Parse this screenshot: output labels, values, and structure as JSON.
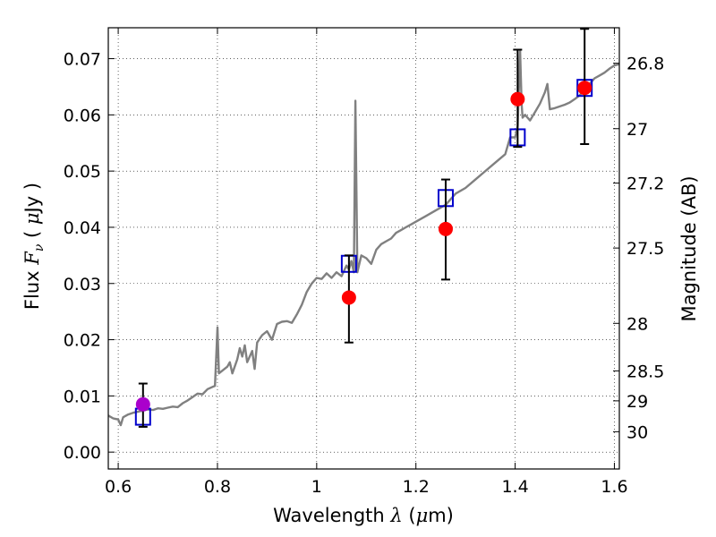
{
  "chart_data": {
    "type": "scatter",
    "title": "",
    "xlabel": "Wavelength  λ (μm)",
    "ylabel": "Flux  Fν  ( μJy )",
    "ylabel_parts": {
      "pre": "Flux ",
      "sym": "F",
      "sub": "ν",
      "post": "  ( ",
      "mu": "μ",
      "unit": "Jy )"
    },
    "xlabel_parts": {
      "pre": "Wavelength  ",
      "sym": "λ",
      "post": " (",
      "mu": "μ",
      "unit": "m)"
    },
    "right_ylabel": "Magnitude (AB)",
    "xlim": [
      0.58,
      1.61
    ],
    "ylim": [
      -0.003,
      0.0755
    ],
    "grid": true,
    "x_ticks": [
      {
        "v": 0.6,
        "label": "0.6"
      },
      {
        "v": 0.8,
        "label": "0.8"
      },
      {
        "v": 1.0,
        "label": "1"
      },
      {
        "v": 1.2,
        "label": "1.2"
      },
      {
        "v": 1.4,
        "label": "1.4"
      },
      {
        "v": 1.6,
        "label": "1.6"
      }
    ],
    "y_ticks": [
      {
        "v": 0.0,
        "label": "0.00"
      },
      {
        "v": 0.01,
        "label": "0.01"
      },
      {
        "v": 0.02,
        "label": "0.02"
      },
      {
        "v": 0.03,
        "label": "0.03"
      },
      {
        "v": 0.04,
        "label": "0.04"
      },
      {
        "v": 0.05,
        "label": "0.05"
      },
      {
        "v": 0.06,
        "label": "0.06"
      },
      {
        "v": 0.07,
        "label": "0.07"
      }
    ],
    "right_ticks": [
      {
        "mag": 26.8,
        "label": "26.8"
      },
      {
        "mag": 27.0,
        "label": "27"
      },
      {
        "mag": 27.2,
        "label": "27.2"
      },
      {
        "mag": 27.5,
        "label": "27.5"
      },
      {
        "mag": 28.0,
        "label": "28"
      },
      {
        "mag": 28.5,
        "label": "28.5"
      },
      {
        "mag": 29.0,
        "label": "29"
      },
      {
        "mag": 30.0,
        "label": "30"
      }
    ],
    "series": [
      {
        "kind": "line",
        "color": "#808080",
        "points": [
          [
            0.58,
            0.0065
          ],
          [
            0.59,
            0.006
          ],
          [
            0.6,
            0.0058
          ],
          [
            0.605,
            0.0048
          ],
          [
            0.61,
            0.0062
          ],
          [
            0.62,
            0.0067
          ],
          [
            0.63,
            0.007
          ],
          [
            0.64,
            0.0072
          ],
          [
            0.65,
            0.0074
          ],
          [
            0.66,
            0.0076
          ],
          [
            0.67,
            0.0075
          ],
          [
            0.68,
            0.0078
          ],
          [
            0.69,
            0.0077
          ],
          [
            0.7,
            0.0079
          ],
          [
            0.71,
            0.0081
          ],
          [
            0.72,
            0.008
          ],
          [
            0.73,
            0.0087
          ],
          [
            0.74,
            0.0092
          ],
          [
            0.75,
            0.0098
          ],
          [
            0.76,
            0.0104
          ],
          [
            0.77,
            0.0103
          ],
          [
            0.78,
            0.0112
          ],
          [
            0.79,
            0.0116
          ],
          [
            0.795,
            0.0118
          ],
          [
            0.8,
            0.0222
          ],
          [
            0.803,
            0.014
          ],
          [
            0.81,
            0.0145
          ],
          [
            0.82,
            0.0152
          ],
          [
            0.825,
            0.016
          ],
          [
            0.83,
            0.014
          ],
          [
            0.84,
            0.0165
          ],
          [
            0.845,
            0.0185
          ],
          [
            0.85,
            0.017
          ],
          [
            0.855,
            0.019
          ],
          [
            0.86,
            0.016
          ],
          [
            0.87,
            0.018
          ],
          [
            0.875,
            0.0148
          ],
          [
            0.88,
            0.0195
          ],
          [
            0.89,
            0.0208
          ],
          [
            0.9,
            0.0215
          ],
          [
            0.91,
            0.02
          ],
          [
            0.92,
            0.0228
          ],
          [
            0.93,
            0.0232
          ],
          [
            0.94,
            0.0233
          ],
          [
            0.95,
            0.023
          ],
          [
            0.96,
            0.0245
          ],
          [
            0.97,
            0.0262
          ],
          [
            0.98,
            0.0285
          ],
          [
            0.99,
            0.03
          ],
          [
            1.0,
            0.031
          ],
          [
            1.01,
            0.0308
          ],
          [
            1.02,
            0.0318
          ],
          [
            1.03,
            0.031
          ],
          [
            1.04,
            0.032
          ],
          [
            1.05,
            0.0313
          ],
          [
            1.06,
            0.0332
          ],
          [
            1.065,
            0.0325
          ],
          [
            1.07,
            0.034
          ],
          [
            1.075,
            0.032
          ],
          [
            1.078,
            0.0625
          ],
          [
            1.082,
            0.032
          ],
          [
            1.09,
            0.035
          ],
          [
            1.1,
            0.0345
          ],
          [
            1.11,
            0.0335
          ],
          [
            1.12,
            0.036
          ],
          [
            1.13,
            0.037
          ],
          [
            1.14,
            0.0375
          ],
          [
            1.15,
            0.038
          ],
          [
            1.16,
            0.039
          ],
          [
            1.17,
            0.0395
          ],
          [
            1.18,
            0.04
          ],
          [
            1.19,
            0.0405
          ],
          [
            1.2,
            0.041
          ],
          [
            1.22,
            0.042
          ],
          [
            1.24,
            0.043
          ],
          [
            1.26,
            0.044
          ],
          [
            1.28,
            0.046
          ],
          [
            1.3,
            0.047
          ],
          [
            1.32,
            0.0485
          ],
          [
            1.34,
            0.05
          ],
          [
            1.36,
            0.0515
          ],
          [
            1.38,
            0.053
          ],
          [
            1.39,
            0.056
          ],
          [
            1.4,
            0.056
          ],
          [
            1.405,
            0.058
          ],
          [
            1.41,
            0.0715
          ],
          [
            1.413,
            0.062
          ],
          [
            1.415,
            0.0595
          ],
          [
            1.42,
            0.06
          ],
          [
            1.43,
            0.059
          ],
          [
            1.44,
            0.0605
          ],
          [
            1.45,
            0.062
          ],
          [
            1.46,
            0.064
          ],
          [
            1.465,
            0.0655
          ],
          [
            1.47,
            0.061
          ],
          [
            1.48,
            0.0612
          ],
          [
            1.49,
            0.0615
          ],
          [
            1.5,
            0.0618
          ],
          [
            1.51,
            0.0622
          ],
          [
            1.52,
            0.0628
          ],
          [
            1.53,
            0.0635
          ],
          [
            1.54,
            0.0645
          ],
          [
            1.55,
            0.0655
          ],
          [
            1.56,
            0.0665
          ],
          [
            1.57,
            0.067
          ],
          [
            1.58,
            0.0675
          ],
          [
            1.59,
            0.0682
          ],
          [
            1.6,
            0.0688
          ],
          [
            1.61,
            0.069
          ]
        ]
      },
      {
        "kind": "open-square",
        "color": "#0000cc",
        "points": [
          [
            0.65,
            0.0063
          ],
          [
            1.065,
            0.0335
          ],
          [
            1.26,
            0.0452
          ],
          [
            1.405,
            0.056
          ],
          [
            1.54,
            0.0648
          ]
        ]
      },
      {
        "kind": "filled-circle",
        "color": "#ff0000",
        "points": [
          {
            "x": 1.065,
            "y": 0.0275,
            "err_low": 0.008,
            "err_high": 0.0075
          },
          {
            "x": 1.26,
            "y": 0.0397,
            "err_low": 0.009,
            "err_high": 0.0088
          },
          {
            "x": 1.405,
            "y": 0.0628,
            "err_low": 0.0085,
            "err_high": 0.0088
          },
          {
            "x": 1.54,
            "y": 0.0648,
            "err_low": 0.01,
            "err_high": 0.0105
          }
        ]
      },
      {
        "kind": "filled-circle",
        "color": "#aa00cc",
        "points": [
          {
            "x": 0.65,
            "y": 0.0085,
            "err_low": 0.004,
            "err_high": 0.0037
          }
        ]
      }
    ]
  }
}
